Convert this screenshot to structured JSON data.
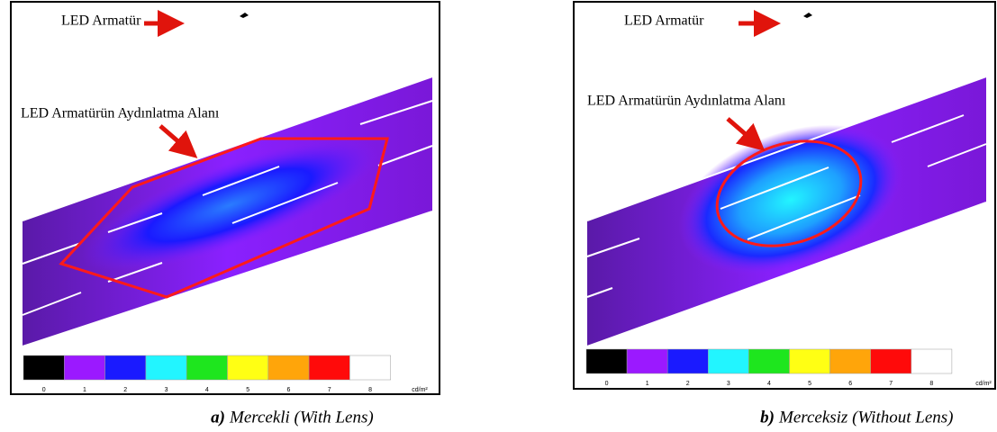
{
  "panels": [
    {
      "luminaire_label": "LED Armatür",
      "area_label": "LED Armatürün Aydınlatma Alanı",
      "caption_label": "a)",
      "caption": "Mercekli (With Lens)"
    },
    {
      "luminaire_label": "LED Armatür",
      "area_label": "LED Armatürün Aydınlatma Alanı",
      "caption_label": "b)",
      "caption": "Merceksiz (Without Lens)"
    }
  ],
  "scale": {
    "ticks": [
      0,
      1,
      2,
      3,
      4,
      5,
      6,
      7,
      8
    ],
    "colors": [
      "#000000",
      "#9b19ff",
      "#1a1aff",
      "#22f5ff",
      "#1ee61e",
      "#ffff14",
      "#ffa50a",
      "#ff0a0a",
      "#ffffff"
    ],
    "unit": "cd/m²"
  }
}
